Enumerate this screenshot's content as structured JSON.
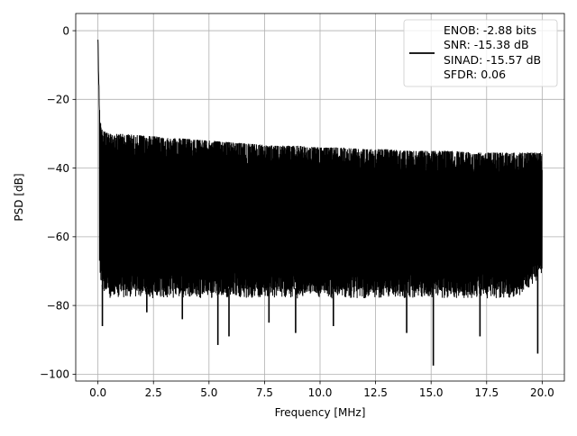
{
  "chart_data": {
    "type": "line",
    "title": "",
    "xlabel": "Frequency [MHz]",
    "ylabel": "PSD [dB]",
    "xlim": [
      -1.0,
      21.0
    ],
    "ylim": [
      -102.0,
      5.0
    ],
    "x_ticks": [
      0.0,
      2.5,
      5.0,
      7.5,
      10.0,
      12.5,
      15.0,
      17.5,
      20.0
    ],
    "x_tick_labels": [
      "0.0",
      "2.5",
      "5.0",
      "7.5",
      "10.0",
      "12.5",
      "15.0",
      "17.5",
      "20.0"
    ],
    "y_ticks": [
      0,
      -20,
      -40,
      -60,
      -80,
      -100
    ],
    "y_tick_labels": [
      "0",
      "−20",
      "−40",
      "−60",
      "−80",
      "−100"
    ],
    "grid": true,
    "legend_position": "top-right",
    "legend": {
      "label_lines": [
        "ENOB: -2.88 bits",
        "SNR: -15.38 dB",
        "SINAD: -15.57 dB",
        "SFDR: 0.06"
      ]
    },
    "series": [
      {
        "color": "#000000",
        "description_points": {
          "x": [
            0.0,
            0.03,
            0.06,
            0.1,
            0.15,
            0.2,
            0.5,
            1.0,
            2.0,
            3.0,
            4.0,
            5.0,
            6.0,
            7.0,
            8.0,
            9.0,
            10.0,
            11.0,
            12.0,
            13.0,
            14.0,
            15.0,
            16.0,
            17.0,
            18.0,
            19.0,
            20.0
          ],
          "upper_envelope": [
            0,
            -10,
            -20,
            -26,
            -28,
            -29,
            -30,
            -30,
            -30.5,
            -31,
            -31.5,
            -32,
            -32.5,
            -33,
            -33.5,
            -33.5,
            -34,
            -34,
            -34.5,
            -34.5,
            -35,
            -35,
            -35,
            -35.5,
            -35.5,
            -35.5,
            -35.5
          ],
          "lower_envelope": [
            -67,
            -68,
            -68,
            -70,
            -72,
            -74,
            -75,
            -75,
            -75,
            -75,
            -75,
            -75,
            -75,
            -75,
            -75,
            -75,
            -75,
            -75,
            -75,
            -75,
            -75,
            -75,
            -75,
            -75,
            -75,
            -75,
            -68
          ]
        },
        "deep_minima": [
          {
            "x": 0.2,
            "y": -86
          },
          {
            "x": 2.2,
            "y": -82
          },
          {
            "x": 3.8,
            "y": -84
          },
          {
            "x": 5.4,
            "y": -91.5
          },
          {
            "x": 5.9,
            "y": -89
          },
          {
            "x": 7.7,
            "y": -85
          },
          {
            "x": 8.9,
            "y": -88
          },
          {
            "x": 10.6,
            "y": -86
          },
          {
            "x": 13.9,
            "y": -88
          },
          {
            "x": 15.1,
            "y": -97.5
          },
          {
            "x": 17.2,
            "y": -89
          },
          {
            "x": 19.8,
            "y": -94
          }
        ]
      }
    ]
  }
}
